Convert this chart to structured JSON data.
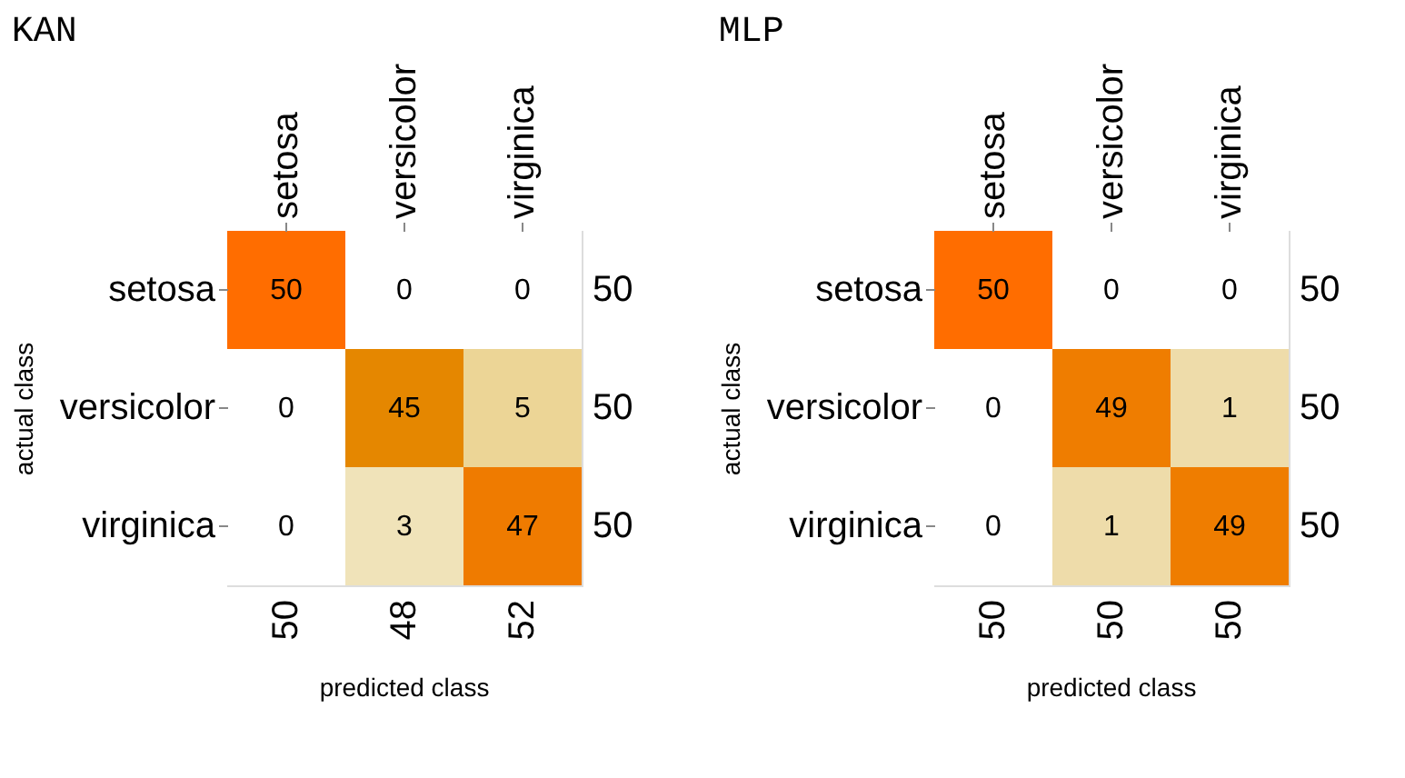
{
  "chart_data": [
    {
      "type": "heatmap",
      "title": "KAN",
      "xlabel": "predicted class",
      "ylabel": "actual class",
      "categories": [
        "setosa",
        "versicolor",
        "virginica"
      ],
      "y_categories": [
        "setosa",
        "versicolor",
        "virginica"
      ],
      "y2_categories": [
        "50",
        "50",
        "50"
      ],
      "cells": [
        [
          50,
          0,
          0
        ],
        [
          0,
          45,
          5
        ],
        [
          0,
          3,
          47
        ]
      ],
      "colors": [
        "#ff6d00",
        "#ffffff",
        "#ffffff",
        "#ffffff",
        "#e58700",
        "#ecd596",
        "#ffffff",
        "#f0e3b9",
        "#ef7b00"
      ],
      "data_labels": true,
      "grid": false,
      "annotations": [
        "50",
        "48",
        "52"
      ]
    },
    {
      "type": "heatmap",
      "title": "MLP",
      "xlabel": "predicted class",
      "ylabel": "actual class",
      "categories": [
        "setosa",
        "versicolor",
        "virginica"
      ],
      "y_categories": [
        "setosa",
        "versicolor",
        "virginica"
      ],
      "y2_categories": [
        "50",
        "50",
        "50"
      ],
      "cells": [
        [
          50,
          0,
          0
        ],
        [
          0,
          49,
          1
        ],
        [
          0,
          1,
          49
        ]
      ],
      "colors": [
        "#ff6d00",
        "#ffffff",
        "#ffffff",
        "#ffffff",
        "#ef7d00",
        "#eedcaa",
        "#ffffff",
        "#eedcaa",
        "#ef7d00"
      ],
      "data_labels": true,
      "grid": false,
      "annotations": [
        "50",
        "50",
        "50"
      ]
    }
  ]
}
